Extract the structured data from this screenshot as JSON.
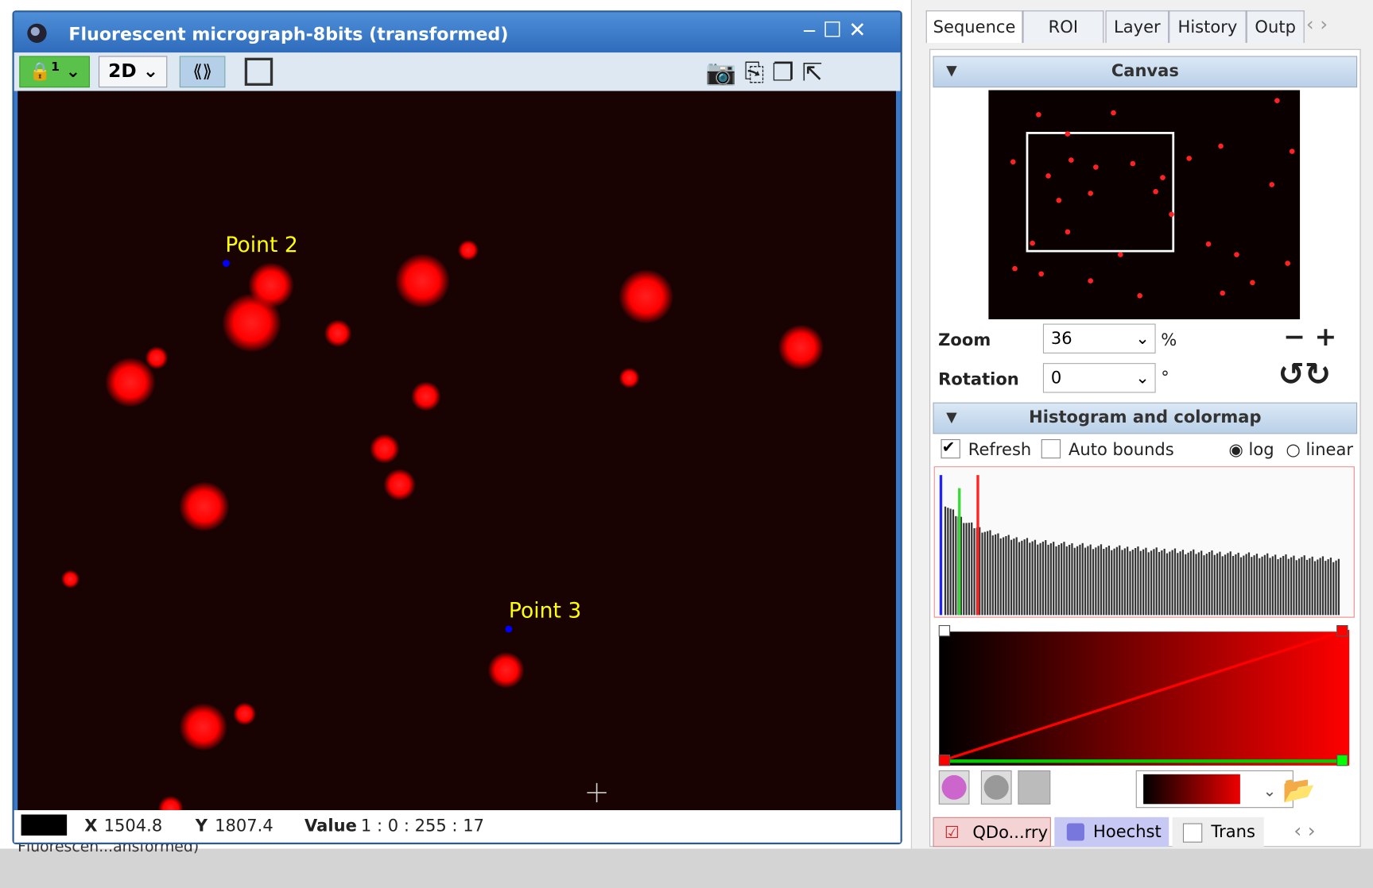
{
  "window": {
    "title": "Fluorescent micrograph-8bits (transformed)",
    "lock_index": "1",
    "view_mode": "2D"
  },
  "image": {
    "points": [
      {
        "label": "Point 2"
      },
      {
        "label": "Point 3"
      }
    ]
  },
  "status": {
    "x_label": "X",
    "x": "1504.8",
    "y_label": "Y",
    "y": "1807.4",
    "value_label": "Value",
    "value": "1 : 0 : 255 : 17"
  },
  "footer_text": "Fluorescen...ansformed)",
  "tabs": [
    "Sequence",
    "ROI",
    "Layer",
    "History",
    "Outp"
  ],
  "canvas": {
    "title": "Canvas",
    "zoom_label": "Zoom",
    "zoom": "36",
    "zoom_unit": "%",
    "rotation_label": "Rotation",
    "rotation": "0",
    "rotation_unit": "°"
  },
  "histogram": {
    "title": "Histogram and colormap",
    "refresh": "Refresh",
    "auto_bounds": "Auto bounds",
    "log": "log",
    "linear": "linear"
  },
  "channels": [
    "QDo...rry",
    "Hoechst",
    "Trans"
  ]
}
